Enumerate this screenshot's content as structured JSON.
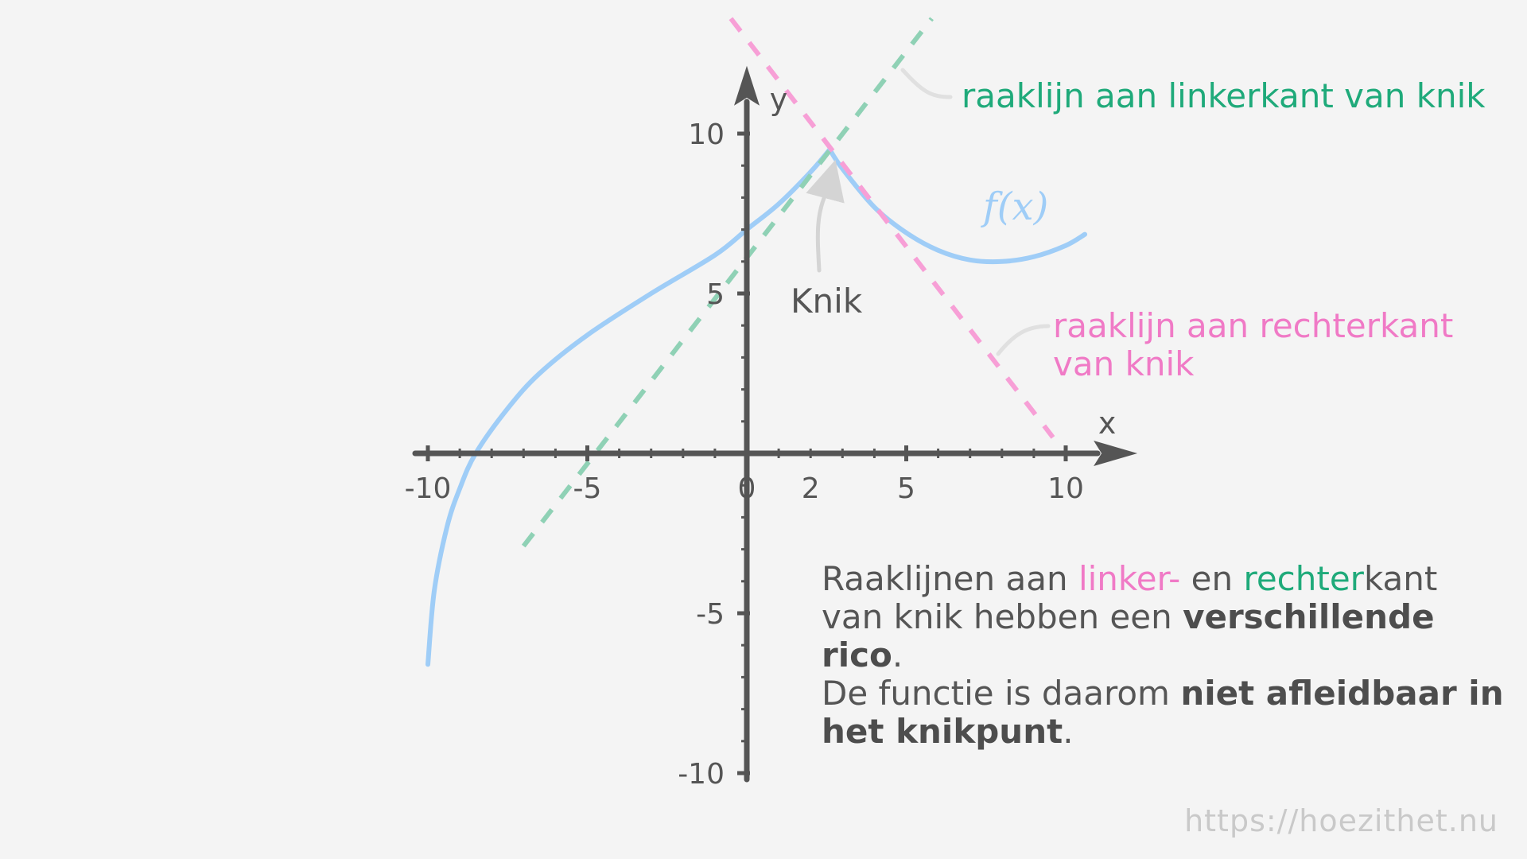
{
  "chart_data": {
    "type": "line",
    "xlabel": "x",
    "ylabel": "y",
    "xlim": [
      -10.5,
      11.5
    ],
    "ylim": [
      -10.4,
      11.5
    ],
    "x_ticks": [
      -10,
      -5,
      0,
      2,
      5,
      10
    ],
    "y_ticks": [
      -10,
      -5,
      5,
      10
    ],
    "grid": false,
    "kink_point": {
      "x": 2.6,
      "y": 9.5
    },
    "series": [
      {
        "name": "f(x)",
        "style": "solid",
        "color": "#9fcdf7",
        "points": [
          [
            -10.0,
            -6.6
          ],
          [
            -9.8,
            -4.3
          ],
          [
            -9.4,
            -2.3
          ],
          [
            -9.0,
            -1.1
          ],
          [
            -8.5,
            0.0
          ],
          [
            -7.5,
            1.4
          ],
          [
            -6.5,
            2.5
          ],
          [
            -5.0,
            3.7
          ],
          [
            -3.0,
            5.0
          ],
          [
            -1.0,
            6.2
          ],
          [
            0.0,
            7.0
          ],
          [
            1.0,
            7.8
          ],
          [
            2.0,
            8.8
          ],
          [
            2.6,
            9.5
          ],
          [
            3.0,
            8.9
          ],
          [
            4.0,
            7.7
          ],
          [
            5.0,
            6.9
          ],
          [
            6.0,
            6.35
          ],
          [
            7.0,
            6.05
          ],
          [
            8.0,
            6.0
          ],
          [
            9.0,
            6.15
          ],
          [
            10.0,
            6.5
          ],
          [
            10.6,
            6.85
          ]
        ]
      },
      {
        "name": "raaklijn aan linkerkant van knik",
        "style": "dashed",
        "color": "#8fd1b5",
        "points": [
          [
            -7.0,
            -2.9
          ],
          [
            5.8,
            13.6
          ]
        ]
      },
      {
        "name": "raaklijn aan rechterkant van knik",
        "style": "dashed",
        "color": "#f79fd6",
        "points": [
          [
            -0.5,
            13.6
          ],
          [
            9.6,
            0.5
          ]
        ]
      }
    ]
  },
  "labels": {
    "function": "f(x)",
    "knik": "Knik",
    "left_tangent": "raaklijn aan linkerkant van knik",
    "right_tangent_line1": "raaklijn aan rechterkant",
    "right_tangent_line2": "van knik"
  },
  "explanation": {
    "p1": "Raaklijnen aan ",
    "p2": "linker-",
    "p3": " en ",
    "p4": "rechter",
    "p5": "kant van knik hebben een ",
    "p6": "verschillende rico",
    "p7": ".",
    "p8": "De functie is daarom ",
    "p9": "niet afleidbaar in het knikpunt",
    "p10": "."
  },
  "footer": {
    "url": "https://hoezithet.nu"
  },
  "colors": {
    "axis": "#555555",
    "function": "#9fcdf7",
    "left_tangent": "#8fd1b5",
    "right_tangent": "#f79fd6",
    "arrow": "#d4d4d4",
    "green_text": "#1faa7a",
    "pink_text": "#f07ac6"
  }
}
